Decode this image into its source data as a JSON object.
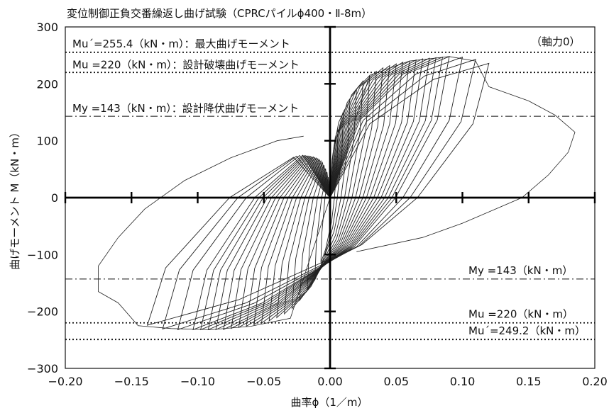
{
  "chart_data": {
    "type": "line",
    "title": "変位制御正負交番繰返し曲げ試験（CPRCパイルϕ400・Ⅱ-8m）",
    "xlabel": "曲率ϕ（1／m）",
    "ylabel": "曲げモーメント M（kN・m）",
    "xlim": [
      -0.2,
      0.2
    ],
    "ylim": [
      -300,
      300
    ],
    "x_ticks": [
      -0.2,
      -0.15,
      -0.1,
      -0.05,
      0.0,
      0.05,
      0.1,
      0.15,
      0.2
    ],
    "x_tick_labels": [
      "−0.20",
      "−0.15",
      "−0.10",
      "−0.05",
      "0.00",
      "0.05",
      "0.10",
      "0.15",
      "0.20"
    ],
    "y_ticks": [
      300,
      200,
      100,
      0,
      -100,
      -200,
      -300
    ],
    "y_tick_labels": [
      "300",
      "200",
      "100",
      "0",
      "−100",
      "−200",
      "−300"
    ],
    "grid": false,
    "axial_force_note": "（軸力0）",
    "reference_lines": [
      {
        "value": 255.4,
        "style": "dotted",
        "label": "Mu´=255.4（kN・m）：最大曲げモーメント",
        "position": "top-left"
      },
      {
        "value": 220,
        "style": "dotted",
        "label": "Mu =220（kN・m）：設計破壊曲げモーメント",
        "position": "top-left"
      },
      {
        "value": 143,
        "style": "dashdot",
        "label": "My =143（kN・m）：設計降伏曲げモーメント",
        "position": "top-left"
      },
      {
        "value": -143,
        "style": "dashdot",
        "label": "My =143（kN・m）",
        "position": "bottom-right"
      },
      {
        "value": -220,
        "style": "dotted",
        "label": "Mu =220（kN・m）",
        "position": "bottom-right"
      },
      {
        "value": -249.2,
        "style": "dotted",
        "label": "Mu´=249.2（kN・m）",
        "position": "bottom-right"
      }
    ],
    "cycle_peaks_x": [
      0.006,
      0.01,
      0.015,
      0.02,
      0.025,
      0.03,
      0.035,
      0.04,
      0.045,
      0.05,
      0.055,
      0.06,
      0.065,
      0.07,
      0.075,
      0.08,
      0.085,
      0.09,
      0.1,
      0.11,
      0.12
    ],
    "cycle_peaks_y": [
      120,
      150,
      170,
      190,
      205,
      215,
      222,
      228,
      232,
      235,
      238,
      240,
      242,
      244,
      245,
      246,
      247,
      248,
      247,
      243,
      236
    ],
    "envelope_positive": {
      "x": [
        0.0,
        0.03,
        0.06,
        0.09,
        0.11,
        0.12,
        0.15,
        0.17,
        0.185,
        0.18,
        0.165,
        0.145,
        0.125,
        0.1,
        0.07,
        0.04,
        0.02
      ],
      "y": [
        0,
        215,
        240,
        248,
        240,
        195,
        170,
        145,
        115,
        80,
        40,
        0,
        -20,
        -45,
        -70,
        -85,
        -95
      ]
    },
    "envelope_negative": {
      "x": [
        0.0,
        -0.03,
        -0.06,
        -0.09,
        -0.12,
        -0.145,
        -0.16,
        -0.175,
        -0.175,
        -0.16,
        -0.14,
        -0.11,
        -0.075,
        -0.04,
        -0.02
      ],
      "y": [
        0,
        -212,
        -226,
        -232,
        -230,
        -225,
        -185,
        -165,
        -120,
        -70,
        -20,
        30,
        70,
        100,
        108
      ]
    }
  }
}
